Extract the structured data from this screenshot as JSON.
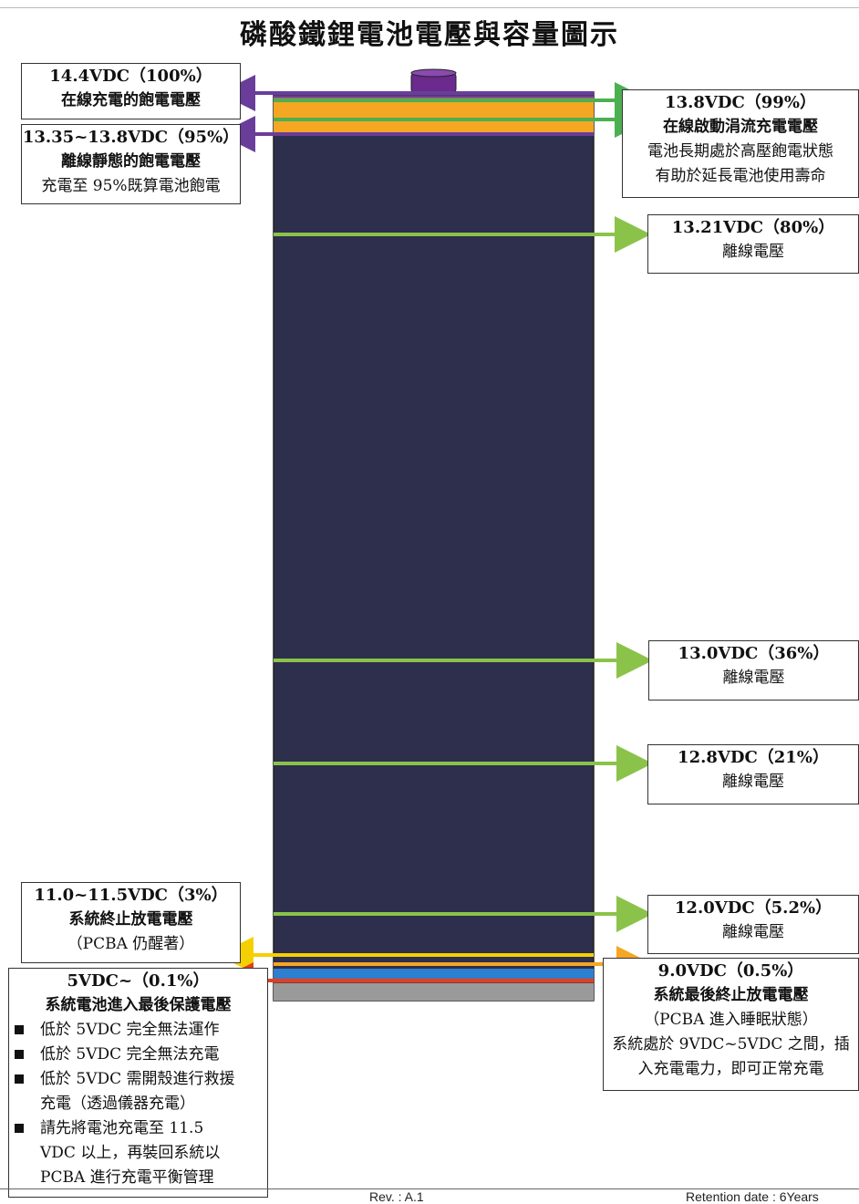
{
  "title": "磷酸鐵鋰電池電壓與容量圖示",
  "labels": {
    "l1": {
      "head": "14.4VDC（100%）",
      "sub": "在線充電的飽電電壓"
    },
    "l2": {
      "head": "13.35~13.8VDC（95%）",
      "sub": "離線靜態的飽電電壓",
      "desc": "充電至 95%既算電池飽電"
    },
    "r1": {
      "head": "13.8VDC（99%）",
      "sub": "在線啟動涓流充電電壓",
      "desc1": "電池長期處於高壓飽電狀態",
      "desc2": "有助於延長電池使用壽命"
    },
    "r2": {
      "head": "13.21VDC（80%）",
      "sub": "離線電壓"
    },
    "r3": {
      "head": "13.0VDC（36%）",
      "sub": "離線電壓"
    },
    "r4": {
      "head": "12.8VDC（21%）",
      "sub": "離線電壓"
    },
    "r5": {
      "head": "12.0VDC（5.2%）",
      "sub": "離線電壓"
    },
    "l3": {
      "head": "11.0~11.5VDC（3%）",
      "sub": "系統終止放電電壓",
      "desc": "（PCBA 仍醒著）"
    },
    "r6": {
      "head": "9.0VDC（0.5%）",
      "sub": "系統最後終止放電電壓",
      "desc1": "（PCBA 進入睡眠狀態）",
      "desc2": "系統處於 9VDC~5VDC 之間，插",
      "desc3": "入充電電力，即可正常充電"
    },
    "l4": {
      "head": "5VDC~（0.1%）",
      "sub": "系統電池進入最後保護電壓",
      "bullets": [
        "低於 5VDC 完全無法運作",
        "低於 5VDC 完全無法充電",
        "低於 5VDC 需開殼進行救援",
        "請先將電池充電至 11.5"
      ],
      "cont1": "充電（透過儀器充電）",
      "cont2": "VDC 以上，再裝回系統以",
      "cont3": "PCBA 進行充電平衡管理"
    }
  },
  "footer": {
    "rev": "Rev. : A.1",
    "retention": "Retention date : 6Years"
  },
  "colors": {
    "battery": "#2d2f4d",
    "cap": "#6a2a8e",
    "orange": "#f5a623",
    "green": "#4caf50",
    "lightgreen": "#8bc34a",
    "purple": "#6a3d9a",
    "yellow": "#f5d000",
    "blue": "#2f7fd0",
    "red": "#e04020",
    "gray": "#9a9a9a"
  }
}
